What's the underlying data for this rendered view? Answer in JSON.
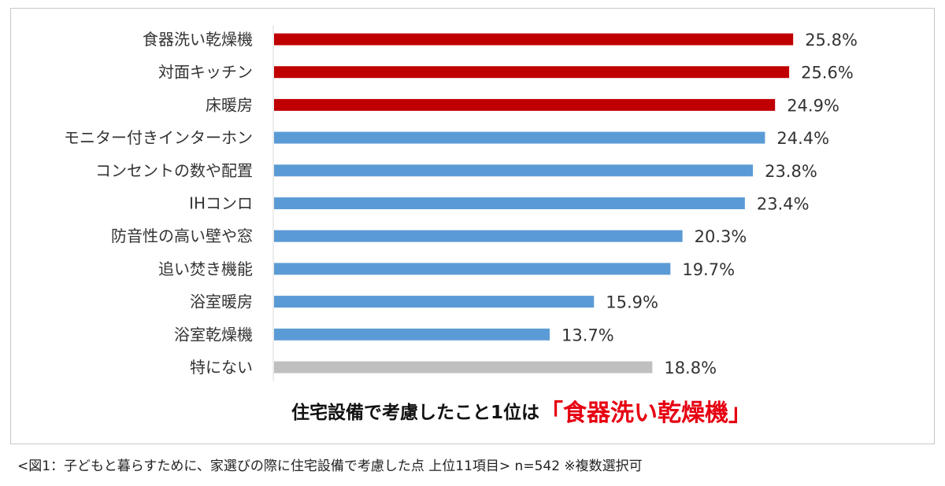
{
  "chart_data": {
    "type": "bar",
    "orientation": "horizontal",
    "categories": [
      "食器洗い乾燥機",
      "対面キッチン",
      "床暖房",
      "モニター付きインターホン",
      "コンセントの数や配置",
      "IHコンロ",
      "防音性の高い壁や窓",
      "追い焚き機能",
      "浴室暖房",
      "浴室乾燥機",
      "特にない"
    ],
    "values": [
      25.8,
      25.6,
      24.9,
      24.4,
      23.8,
      23.4,
      20.3,
      19.7,
      15.9,
      13.7,
      18.8
    ],
    "value_labels": [
      "25.8%",
      "25.6%",
      "24.9%",
      "24.4%",
      "23.8%",
      "23.4%",
      "20.3%",
      "19.7%",
      "15.9%",
      "13.7%",
      "18.8%"
    ],
    "bar_colors": [
      "#c00000",
      "#c00000",
      "#c00000",
      "#5b9bd5",
      "#5b9bd5",
      "#5b9bd5",
      "#5b9bd5",
      "#5b9bd5",
      "#5b9bd5",
      "#5b9bd5",
      "#bfbfbf"
    ],
    "xlim": [
      0,
      28
    ],
    "grid": false,
    "legend": "none"
  },
  "headline": {
    "main": "住宅設備で考慮したこと1位は",
    "highlight": "「食器洗い乾燥機」"
  },
  "caption": "<図1：子どもと暮らすために、家選びの際に住宅設備で考慮した点 上位11項目> n=542 ※複数選択可"
}
